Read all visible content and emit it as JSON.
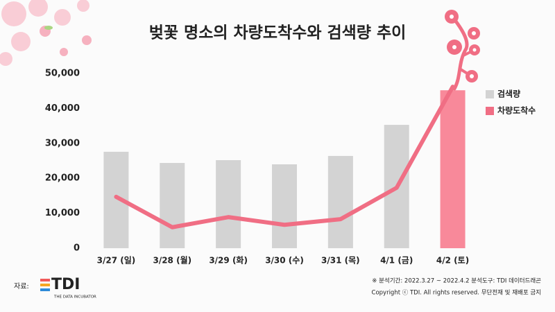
{
  "chart_data": {
    "type": "bar_line",
    "title": "벚꽃 명소의 차량도착수와 검색량 추이",
    "categories": [
      "3/27 (일)",
      "3/28 (월)",
      "3/29 (화)",
      "3/30 (수)",
      "3/31 (목)",
      "4/1 (금)",
      "4/2 (토)"
    ],
    "series": [
      {
        "name": "검색량",
        "type": "bar",
        "color": "#d3d3d3",
        "colors": [
          "#d3d3d3",
          "#d3d3d3",
          "#d3d3d3",
          "#d3d3d3",
          "#d3d3d3",
          "#d3d3d3",
          "#f8899a"
        ],
        "values": [
          27600,
          24400,
          25200,
          24000,
          26400,
          35300,
          45200
        ]
      },
      {
        "name": "차량도착수",
        "type": "line",
        "color": "#f06e84",
        "values": [
          14700,
          6000,
          8900,
          6700,
          8300,
          17300,
          46200
        ]
      }
    ],
    "ylim": [
      0,
      50000
    ],
    "yticks": [
      0,
      {
        "value": 10000,
        "label": "10,000"
      },
      {
        "value": 20000,
        "label": "20,000"
      },
      {
        "value": 30000,
        "label": "30,000"
      },
      {
        "value": 40000,
        "label": "40,000"
      },
      {
        "value": 50000,
        "label": "50,000"
      }
    ],
    "grid": false,
    "legend": "right"
  },
  "footer": {
    "source_label": "자료:",
    "logo": "TDI",
    "logo_sub": "THE DATA INCUBATOR",
    "note": "※ 분석기간: 2022.3.27 ~ 2022.4.2  분석도구: TDI 데이터드래곤",
    "copyright": "Copyright ⓒ TDI. All rights reserved. 무단전재 및 재배포 금지"
  }
}
